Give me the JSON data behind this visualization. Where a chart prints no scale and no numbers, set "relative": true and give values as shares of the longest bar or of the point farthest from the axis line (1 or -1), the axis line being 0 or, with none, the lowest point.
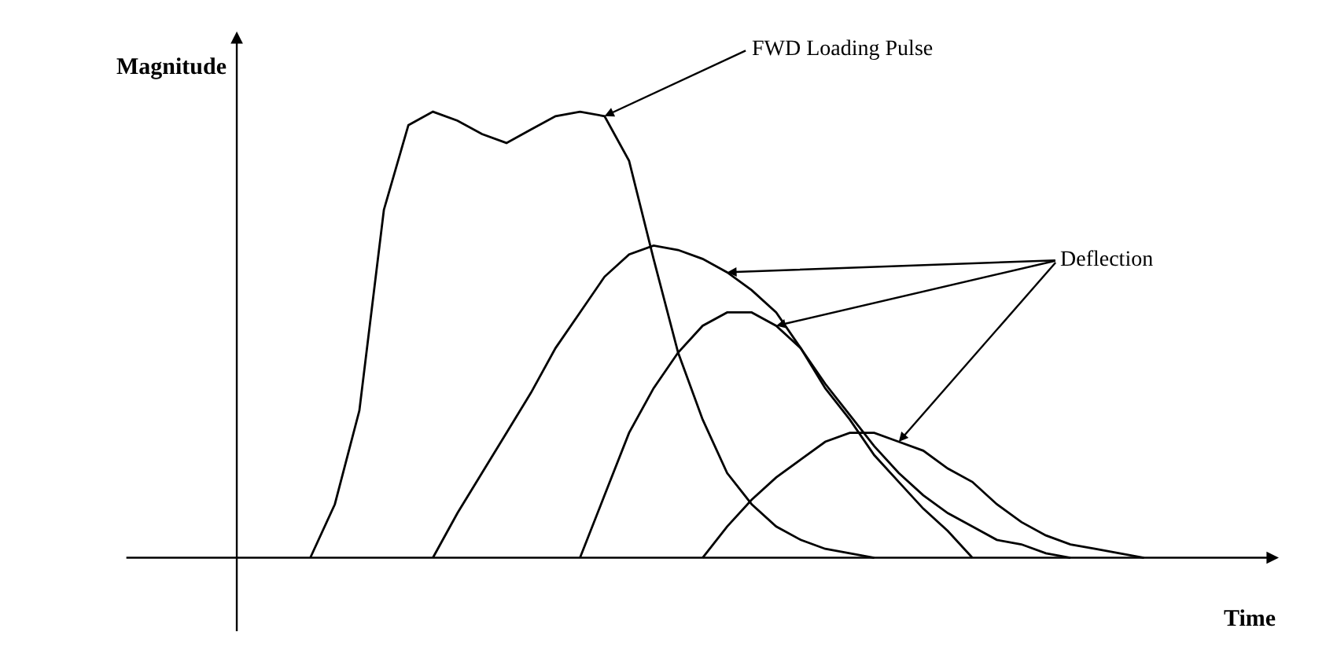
{
  "chart_data": {
    "type": "line",
    "relative": true,
    "xlabel": "Time",
    "ylabel": "Magnitude",
    "categories": [
      null,
      null,
      null,
      null,
      null,
      null,
      null,
      null,
      null,
      null,
      null,
      null,
      null,
      null,
      null,
      null,
      null,
      null,
      null,
      null,
      null,
      null,
      null,
      null,
      null,
      null,
      null,
      null,
      null,
      null,
      null,
      null,
      null,
      null,
      null,
      null,
      null,
      null,
      null,
      null,
      null
    ],
    "series": [
      {
        "color": "#000000",
        "values": [
          null,
          null,
          null,
          0,
          0.12,
          0.33,
          0.78,
          0.97,
          1.0,
          0.98,
          0.95,
          0.93,
          0.96,
          0.99,
          1.0,
          0.99,
          0.89,
          0.67,
          0.46,
          0.31,
          0.19,
          0.12,
          0.07,
          0.04,
          0.02,
          0.01,
          0,
          null,
          null,
          null,
          null,
          null,
          null,
          null,
          null,
          null,
          null,
          null,
          null,
          null,
          null
        ]
      },
      {
        "color": "#000000",
        "values": [
          null,
          null,
          null,
          null,
          null,
          null,
          null,
          null,
          0,
          0.1,
          0.19,
          0.28,
          0.37,
          0.47,
          0.55,
          0.63,
          0.68,
          0.7,
          0.69,
          0.67,
          0.64,
          0.6,
          0.55,
          0.47,
          0.38,
          0.31,
          0.23,
          0.17,
          0.11,
          0.06,
          0,
          null,
          null,
          null,
          null,
          null,
          null,
          null,
          null,
          null,
          null
        ]
      },
      {
        "color": "#000000",
        "values": [
          null,
          null,
          null,
          null,
          null,
          null,
          null,
          null,
          null,
          null,
          null,
          null,
          null,
          null,
          0,
          0.14,
          0.28,
          0.38,
          0.46,
          0.52,
          0.55,
          0.55,
          0.52,
          0.47,
          0.39,
          0.32,
          0.25,
          0.19,
          0.14,
          0.1,
          0.07,
          0.04,
          0.03,
          0.01,
          0,
          null,
          null,
          null,
          null,
          null,
          null
        ]
      },
      {
        "color": "#000000",
        "values": [
          null,
          null,
          null,
          null,
          null,
          null,
          null,
          null,
          null,
          null,
          null,
          null,
          null,
          null,
          null,
          null,
          null,
          null,
          null,
          0,
          0.07,
          0.13,
          0.18,
          0.22,
          0.26,
          0.28,
          0.28,
          0.26,
          0.24,
          0.2,
          0.17,
          0.12,
          0.08,
          0.05,
          0.03,
          0.02,
          0.01,
          0,
          null,
          null,
          null
        ]
      }
    ],
    "annotations": [
      "FWD Loading Pulse",
      "Deflection"
    ]
  }
}
